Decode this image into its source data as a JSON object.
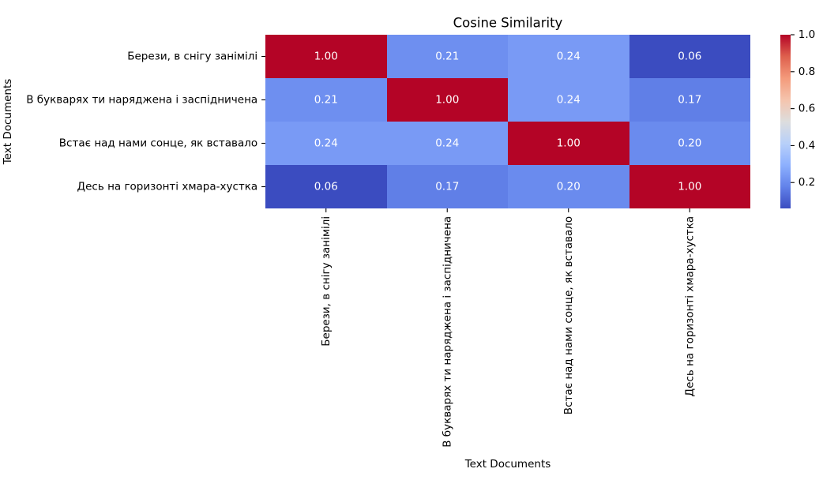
{
  "chart_data": {
    "type": "heatmap",
    "title": "Cosine Similarity",
    "xlabel": "Text Documents",
    "ylabel": "Text Documents",
    "x_categories": [
      "Берези, в снігу занімілі",
      "В букварях ти наряджена і заспідничена",
      "Встає над нами сонце, як вставало",
      "Десь на горизонті хмара-хустка"
    ],
    "y_categories": [
      "Берези, в снігу занімілі",
      "В букварях ти наряджена і заспідничена",
      "Встає над нами сонце, як вставало",
      "Десь на горизонті хмара-хустка"
    ],
    "values": [
      [
        1.0,
        0.21,
        0.24,
        0.06
      ],
      [
        0.21,
        1.0,
        0.24,
        0.17
      ],
      [
        0.24,
        0.24,
        1.0,
        0.2
      ],
      [
        0.06,
        0.17,
        0.2,
        1.0
      ]
    ],
    "annotations": [
      [
        "1.00",
        "0.21",
        "0.24",
        "0.06"
      ],
      [
        "0.21",
        "1.00",
        "0.24",
        "0.17"
      ],
      [
        "0.24",
        "0.24",
        "1.00",
        "0.20"
      ],
      [
        "0.06",
        "0.17",
        "0.20",
        "1.00"
      ]
    ],
    "colorbar": {
      "position": "right",
      "range": [
        0.06,
        1.0
      ],
      "ticks": [
        "0.2",
        "0.4",
        "0.6",
        "0.8",
        "1.0"
      ]
    },
    "colormap_colors": [
      "#3b4cc0",
      "#6282ea",
      "#8db0fe",
      "#b8d0f9",
      "#dddddd",
      "#f5c4ad",
      "#f49a7b",
      "#de604d",
      "#b40426"
    ],
    "annotation_color": "#ffffff",
    "grid": false
  }
}
